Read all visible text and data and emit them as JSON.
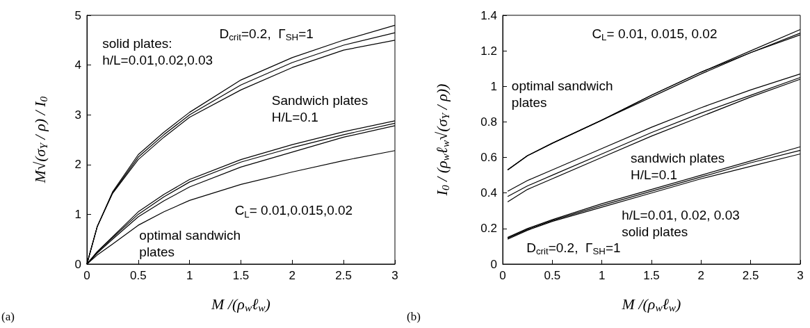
{
  "chart_data": [
    {
      "type": "line",
      "xlabel": "M /(ρ$_{w}$ℓ$_{w}$)",
      "ylabel": "M√(σ$_{Y}$ / ρ) / I$_{0}$",
      "xlim": [
        0,
        3
      ],
      "xticks": [
        0,
        0.5,
        1,
        1.5,
        2,
        2.5,
        3
      ],
      "ylim": [
        0,
        5
      ],
      "yticks": [
        0,
        1,
        2,
        3,
        4,
        5
      ],
      "grid": false,
      "marker": "none",
      "line_style": "solid",
      "x": [
        0,
        0.1,
        0.25,
        0.5,
        0.75,
        1,
        1.5,
        2,
        2.5,
        3
      ],
      "series": [
        {
          "color": "#000000",
          "values": [
            0,
            0.75,
            1.45,
            2.2,
            2.65,
            3.05,
            3.7,
            4.15,
            4.5,
            4.8
          ]
        },
        {
          "color": "#000000",
          "values": [
            0,
            0.75,
            1.43,
            2.15,
            2.6,
            3.0,
            3.6,
            4.05,
            4.4,
            4.65
          ]
        },
        {
          "color": "#000000",
          "values": [
            0,
            0.75,
            1.42,
            2.1,
            2.55,
            2.95,
            3.5,
            3.95,
            4.3,
            4.5
          ]
        },
        {
          "color": "#000000",
          "values": [
            0,
            0.25,
            0.55,
            1.05,
            1.4,
            1.7,
            2.1,
            2.4,
            2.66,
            2.88
          ]
        },
        {
          "color": "#000000",
          "values": [
            0,
            0.24,
            0.53,
            1.0,
            1.35,
            1.65,
            2.05,
            2.34,
            2.6,
            2.83
          ]
        },
        {
          "color": "#000000",
          "values": [
            0,
            0.22,
            0.5,
            0.95,
            1.27,
            1.55,
            1.95,
            2.25,
            2.55,
            2.78
          ]
        },
        {
          "color": "#000000",
          "values": [
            0,
            0.18,
            0.4,
            0.78,
            1.05,
            1.28,
            1.6,
            1.85,
            2.08,
            2.28
          ]
        }
      ],
      "annotations": [
        "solid plates:\nh/L=0.01,0.02,0.03",
        "D$_{crit}$=0.2,  Γ$_{SH}$=1",
        "Sandwich plates\nH/L=0.1",
        "C$_{L}$= 0.01,0.015,0.02",
        "optimal sandwich\nplates",
        "(a)"
      ]
    },
    {
      "type": "line",
      "xlabel": "M /(ρ$_{w}$ℓ$_{w}$)",
      "ylabel": "I$_{0}$ / (ρ$_{w}$ℓ$_{w}$√(σ$_{Y}$ / ρ))",
      "xlim": [
        0,
        3
      ],
      "xticks": [
        0,
        0.5,
        1,
        1.5,
        2,
        2.5,
        3
      ],
      "ylim": [
        0,
        1.4
      ],
      "yticks": [
        0,
        0.2,
        0.4,
        0.6,
        0.8,
        1,
        1.2,
        1.4
      ],
      "grid": false,
      "marker": "none",
      "line_style": "solid",
      "x": [
        0.05,
        0.25,
        0.5,
        1,
        1.5,
        2,
        2.5,
        3
      ],
      "series": [
        {
          "color": "#000000",
          "values": [
            0.53,
            0.61,
            0.68,
            0.81,
            0.95,
            1.08,
            1.2,
            1.32
          ]
        },
        {
          "color": "#000000",
          "values": [
            0.53,
            0.61,
            0.68,
            0.81,
            0.95,
            1.08,
            1.19,
            1.3
          ]
        },
        {
          "color": "#000000",
          "values": [
            0.53,
            0.61,
            0.68,
            0.81,
            0.94,
            1.07,
            1.19,
            1.29
          ]
        },
        {
          "color": "#000000",
          "values": [
            0.41,
            0.47,
            0.53,
            0.65,
            0.77,
            0.88,
            0.98,
            1.07
          ]
        },
        {
          "color": "#000000",
          "values": [
            0.38,
            0.44,
            0.5,
            0.62,
            0.74,
            0.85,
            0.95,
            1.05
          ]
        },
        {
          "color": "#000000",
          "values": [
            0.35,
            0.42,
            0.48,
            0.6,
            0.72,
            0.83,
            0.94,
            1.04
          ]
        },
        {
          "color": "#000000",
          "values": [
            0.15,
            0.2,
            0.25,
            0.34,
            0.42,
            0.5,
            0.58,
            0.66
          ]
        },
        {
          "color": "#000000",
          "values": [
            0.145,
            0.195,
            0.245,
            0.33,
            0.41,
            0.49,
            0.57,
            0.64
          ]
        },
        {
          "color": "#000000",
          "values": [
            0.14,
            0.19,
            0.24,
            0.32,
            0.4,
            0.48,
            0.55,
            0.62
          ]
        }
      ],
      "annotations": [
        "C$_{L}$= 0.01, 0.015, 0.02",
        "optimal sandwich\nplates",
        "sandwich plates\nH/L=0.1",
        "h/L=0.01, 0.02, 0.03\nsolid plates",
        "D$_{crit}$=0.2,  Γ$_{SH}$=1",
        "(b)"
      ]
    }
  ]
}
